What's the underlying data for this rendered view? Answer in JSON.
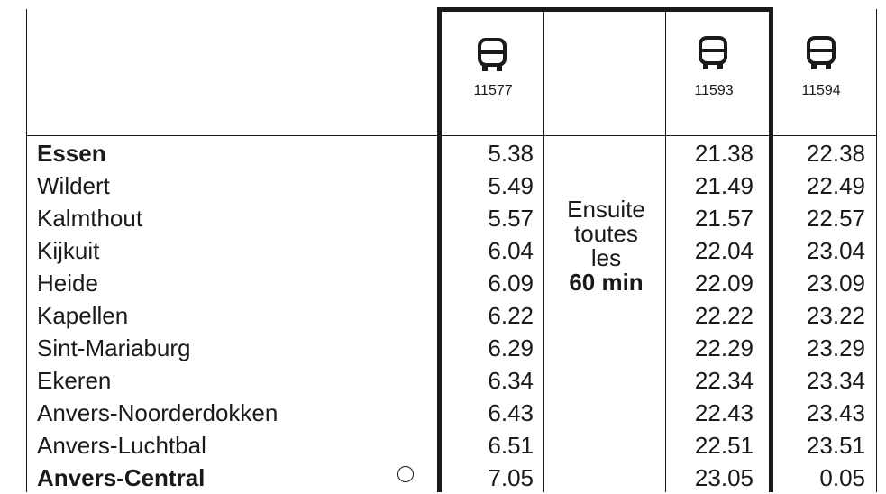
{
  "trips": [
    {
      "number": "11577"
    },
    {
      "number": "11593"
    },
    {
      "number": "11594"
    }
  ],
  "stations": [
    {
      "name": "Essen",
      "bold": true
    },
    {
      "name": "Wildert",
      "bold": false
    },
    {
      "name": "Kalmthout",
      "bold": false
    },
    {
      "name": "Kijkuit",
      "bold": false
    },
    {
      "name": "Heide",
      "bold": false
    },
    {
      "name": "Kapellen",
      "bold": false
    },
    {
      "name": "Sint-Mariaburg",
      "bold": false
    },
    {
      "name": "Ekeren",
      "bold": false
    },
    {
      "name": "Anvers-Noorderdokken",
      "bold": false
    },
    {
      "name": "Anvers-Luchtbal",
      "bold": false
    },
    {
      "name": "Anvers-Central",
      "bold": true
    }
  ],
  "times": {
    "col1": [
      "5.38",
      "5.49",
      "5.57",
      "6.04",
      "6.09",
      "6.22",
      "6.29",
      "6.34",
      "6.43",
      "6.51",
      "7.05"
    ],
    "col2": [
      "21.38",
      "21.49",
      "21.57",
      "22.04",
      "22.09",
      "22.22",
      "22.29",
      "22.34",
      "22.43",
      "22.51",
      "23.05"
    ],
    "col3": [
      "22.38",
      "22.49",
      "22.57",
      "23.04",
      "23.09",
      "23.22",
      "23.29",
      "23.34",
      "23.43",
      "23.51",
      "0.05"
    ]
  },
  "frequency_note": {
    "line1": "Ensuite",
    "line2": "toutes",
    "line3": "les",
    "line4": "60 min"
  },
  "icons": {
    "bus": "bus-icon",
    "terminal": "circle-icon"
  }
}
